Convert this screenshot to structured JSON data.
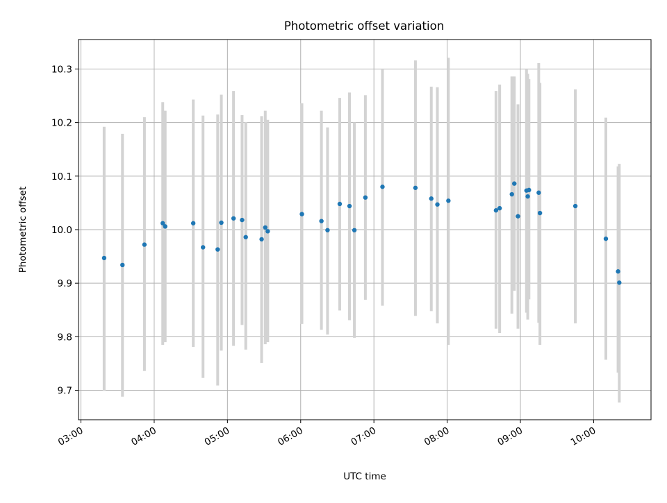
{
  "chart_data": {
    "type": "scatter",
    "title": "Photometric offset variation",
    "xlabel": "UTC time",
    "ylabel": "Photometric offset",
    "x_ticks": [
      "03:00",
      "04:00",
      "05:00",
      "06:00",
      "07:00",
      "08:00",
      "09:00",
      "10:00"
    ],
    "y_ticks": [
      "9.7",
      "9.8",
      "9.9",
      "10.0",
      "10.1",
      "10.2",
      "10.3"
    ],
    "xlim": [
      "02:58",
      "10:47"
    ],
    "ylim": [
      9.645,
      10.355
    ],
    "grid": true,
    "colors": {
      "points": "#1f77b4",
      "errorbars": "#d3d3d3",
      "grid": "#b0b0b0"
    },
    "series": [
      {
        "x": [
          "03:19",
          "03:34",
          "03:52",
          "04:07",
          "04:09",
          "04:32",
          "04:40",
          "04:52",
          "04:55",
          "05:05",
          "05:12",
          "05:15",
          "05:28",
          "05:31",
          "05:33",
          "06:01",
          "06:17",
          "06:22",
          "06:32",
          "06:40",
          "06:44",
          "06:53",
          "07:07",
          "07:34",
          "07:47",
          "07:52",
          "08:01",
          "08:40",
          "08:43",
          "08:53",
          "08:55",
          "08:58",
          "09:05",
          "09:06",
          "09:07",
          "09:15",
          "09:16",
          "09:45",
          "10:10",
          "10:20",
          "10:21"
        ],
        "y": [
          9.947,
          9.934,
          9.972,
          10.012,
          10.006,
          10.012,
          9.967,
          9.963,
          10.013,
          10.021,
          10.018,
          9.986,
          9.982,
          10.004,
          9.997,
          10.029,
          10.016,
          9.999,
          10.048,
          10.044,
          9.999,
          10.06,
          10.08,
          10.078,
          10.058,
          10.047,
          10.054,
          10.036,
          10.04,
          10.066,
          10.086,
          10.025,
          10.073,
          10.062,
          10.074,
          10.069,
          10.031,
          10.044,
          9.983,
          9.922,
          9.901
        ],
        "yerr_low": [
          9.699,
          9.688,
          9.736,
          9.785,
          9.79,
          9.781,
          9.723,
          9.709,
          9.774,
          9.783,
          9.822,
          9.776,
          9.751,
          9.786,
          9.79,
          9.824,
          9.813,
          9.804,
          9.849,
          9.831,
          9.798,
          9.869,
          9.858,
          9.839,
          9.848,
          9.825,
          9.785,
          9.815,
          9.807,
          9.843,
          9.886,
          9.815,
          9.845,
          9.832,
          9.87,
          9.826,
          9.785,
          9.825,
          9.757,
          9.733,
          9.677
        ],
        "yerr_high": [
          10.192,
          10.179,
          10.21,
          10.238,
          10.222,
          10.243,
          10.213,
          10.215,
          10.252,
          10.259,
          10.214,
          10.201,
          10.212,
          10.222,
          10.205,
          10.236,
          10.222,
          10.191,
          10.246,
          10.256,
          10.2,
          10.251,
          10.299,
          10.316,
          10.267,
          10.266,
          10.321,
          10.259,
          10.271,
          10.286,
          10.286,
          10.234,
          10.299,
          10.291,
          10.281,
          10.311,
          10.274,
          10.262,
          10.209,
          10.118,
          10.123
        ]
      }
    ]
  }
}
